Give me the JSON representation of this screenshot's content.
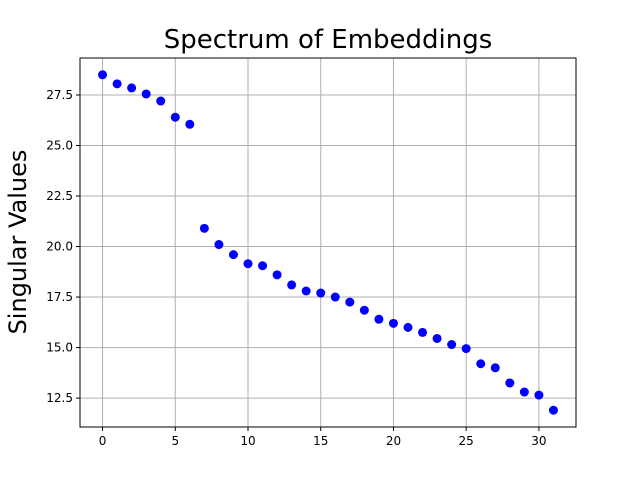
{
  "chart_data": {
    "type": "scatter",
    "title": "Spectrum of Embeddings",
    "xlabel": "",
    "ylabel": "Singular Values",
    "xlim": [
      -1.55,
      32.55
    ],
    "ylim": [
      11.07,
      29.33
    ],
    "xticks": [
      0,
      5,
      10,
      15,
      20,
      25,
      30
    ],
    "xtick_labels": [
      "0",
      "5",
      "10",
      "15",
      "20",
      "25",
      "30"
    ],
    "yticks": [
      12.5,
      15.0,
      17.5,
      20.0,
      22.5,
      25.0,
      27.5
    ],
    "ytick_labels": [
      "12.5",
      "15.0",
      "17.5",
      "20.0",
      "22.5",
      "25.0",
      "27.5"
    ],
    "grid": true,
    "marker_color": "#0000ff",
    "series": [
      {
        "x": [
          0,
          1,
          2,
          3,
          4,
          5,
          6,
          7,
          8,
          9,
          10,
          11,
          12,
          13,
          14,
          15,
          16,
          17,
          18,
          19,
          20,
          21,
          22,
          23,
          24,
          25,
          26,
          27,
          28,
          29,
          30,
          31
        ],
        "y": [
          28.5,
          28.05,
          27.85,
          27.55,
          27.2,
          26.4,
          26.05,
          20.9,
          20.1,
          19.6,
          19.15,
          19.05,
          18.6,
          18.1,
          17.8,
          17.7,
          17.5,
          17.25,
          16.85,
          16.4,
          16.2,
          16.0,
          15.75,
          15.45,
          15.15,
          14.95,
          14.2,
          14.0,
          13.25,
          12.8,
          12.65,
          11.9
        ]
      }
    ]
  }
}
